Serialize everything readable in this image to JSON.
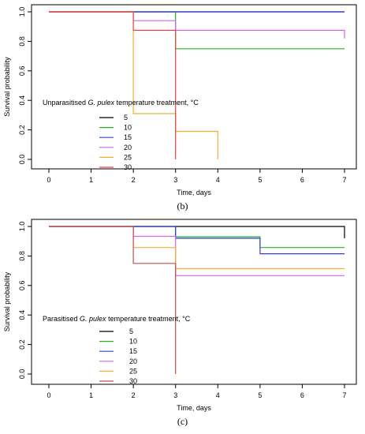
{
  "chart_data": [
    {
      "type": "line",
      "step": true,
      "caption": "(b)",
      "xlabel": "Time, days",
      "ylabel": "Survival probability",
      "xlim": [
        0,
        7
      ],
      "ylim": [
        0,
        1
      ],
      "xticks": [
        0,
        1,
        2,
        3,
        4,
        5,
        6,
        7
      ],
      "yticks": [
        0.0,
        0.2,
        0.4,
        0.6,
        0.8,
        1.0
      ],
      "ytick_labels": [
        "0.0",
        "0.2",
        "0.4",
        "0.6",
        "0.8",
        "1.0"
      ],
      "grid": false,
      "legend": {
        "title_before": "Unparasitised ",
        "title_italic": "G. pulex",
        "title_after": " temperature treatment, °C",
        "placement": "bottom-left"
      },
      "series": [
        {
          "name": "5",
          "color": "#000000",
          "points": [
            [
              0,
              1.0
            ],
            [
              7,
              1.0
            ]
          ]
        },
        {
          "name": "10",
          "color": "#22b522",
          "points": [
            [
              0,
              1.0
            ],
            [
              3,
              1.0
            ],
            [
              3,
              0.75
            ],
            [
              7,
              0.75
            ]
          ]
        },
        {
          "name": "15",
          "color": "#3b3bd6",
          "points": [
            [
              0,
              1.0
            ],
            [
              7,
              1.0
            ]
          ]
        },
        {
          "name": "20",
          "color": "#cc66ee",
          "points": [
            [
              0,
              1.0
            ],
            [
              2,
              1.0
            ],
            [
              2,
              0.94
            ],
            [
              3,
              0.94
            ],
            [
              3,
              0.875
            ],
            [
              7,
              0.875
            ],
            [
              7,
              0.82
            ]
          ]
        },
        {
          "name": "25",
          "color": "#f2b033",
          "points": [
            [
              0,
              1.0
            ],
            [
              2,
              1.0
            ],
            [
              2,
              0.31
            ],
            [
              3,
              0.31
            ],
            [
              3,
              0.19
            ],
            [
              4,
              0.19
            ],
            [
              4,
              0.0
            ]
          ]
        },
        {
          "name": "30",
          "color": "#ee4444",
          "points": [
            [
              0,
              1.0
            ],
            [
              2,
              1.0
            ],
            [
              2,
              0.875
            ],
            [
              3,
              0.875
            ],
            [
              3,
              0.0
            ]
          ]
        }
      ]
    },
    {
      "type": "line",
      "step": true,
      "caption": "(c)",
      "xlabel": "Time, days",
      "ylabel": "Survival probability",
      "xlim": [
        0,
        7
      ],
      "ylim": [
        0,
        1
      ],
      "xticks": [
        0,
        1,
        2,
        3,
        4,
        5,
        6,
        7
      ],
      "yticks": [
        0.0,
        0.2,
        0.4,
        0.6,
        0.8,
        1.0
      ],
      "ytick_labels": [
        "0.0",
        "0.2",
        "0.4",
        "0.6",
        "0.8",
        "1.0"
      ],
      "grid": false,
      "legend": {
        "title_before": "Parasitised ",
        "title_italic": "G. pulex",
        "title_after": " temperature treatment, °C",
        "placement": "bottom-left"
      },
      "series": [
        {
          "name": "5",
          "color": "#000000",
          "points": [
            [
              0,
              1.0
            ],
            [
              7,
              1.0
            ],
            [
              7,
              0.92
            ]
          ]
        },
        {
          "name": "10",
          "color": "#22b522",
          "points": [
            [
              0,
              1.0
            ],
            [
              3,
              1.0
            ],
            [
              3,
              0.93
            ],
            [
              5,
              0.93
            ],
            [
              5,
              0.857
            ],
            [
              7,
              0.857
            ]
          ]
        },
        {
          "name": "15",
          "color": "#3b3bd6",
          "points": [
            [
              0,
              1.0
            ],
            [
              3,
              1.0
            ],
            [
              3,
              0.92
            ],
            [
              5,
              0.92
            ],
            [
              5,
              0.815
            ],
            [
              7,
              0.815
            ]
          ]
        },
        {
          "name": "20",
          "color": "#cc66ee",
          "points": [
            [
              0,
              1.0
            ],
            [
              2,
              1.0
            ],
            [
              2,
              0.933
            ],
            [
              3,
              0.933
            ],
            [
              3,
              0.667
            ],
            [
              7,
              0.667
            ]
          ]
        },
        {
          "name": "25",
          "color": "#f2b033",
          "points": [
            [
              0,
              1.0
            ],
            [
              2,
              1.0
            ],
            [
              2,
              0.857
            ],
            [
              3,
              0.857
            ],
            [
              3,
              0.714
            ],
            [
              7,
              0.714
            ]
          ]
        },
        {
          "name": "30",
          "color": "#c0504d",
          "points": [
            [
              0,
              1.0
            ],
            [
              2,
              1.0
            ],
            [
              2,
              0.75
            ],
            [
              3,
              0.75
            ],
            [
              3,
              0.0
            ]
          ]
        }
      ]
    }
  ]
}
